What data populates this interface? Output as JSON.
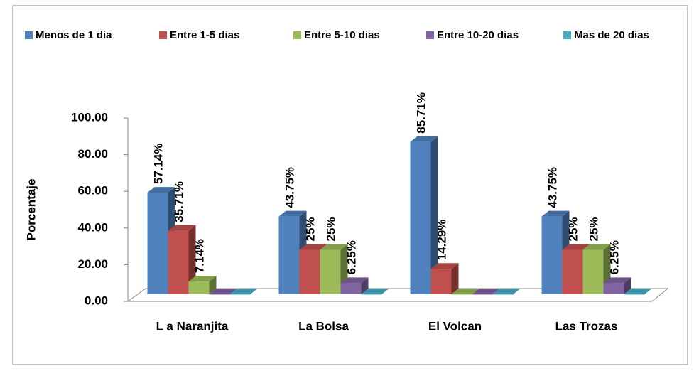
{
  "chart_data": {
    "type": "bar3d",
    "y_label": "Porcentaje",
    "categories": [
      "L a Naranjita",
      "La Bolsa",
      "El Volcan",
      "Las Trozas"
    ],
    "series": [
      {
        "name": "Menos de 1 dia",
        "color": "#4f81bd",
        "values": [
          57.14,
          43.75,
          85.71,
          43.75
        ],
        "value_labels": [
          "57.14%",
          "43.75%",
          "85.71%",
          "43.75%"
        ]
      },
      {
        "name": "Entre 1-5 dias",
        "color": "#c0504d",
        "values": [
          35.71,
          25,
          14.29,
          25
        ],
        "value_labels": [
          "35.71%",
          "25%",
          "14.29%",
          "25%"
        ]
      },
      {
        "name": "Entre 5-10 dias",
        "color": "#9bbb59",
        "values": [
          7.14,
          25,
          0,
          25
        ],
        "value_labels": [
          "7.14%",
          "25%",
          null,
          "25%"
        ]
      },
      {
        "name": "Entre 10-20 dias",
        "color": "#8064a2",
        "values": [
          0,
          6.25,
          0,
          6.25
        ],
        "value_labels": [
          null,
          "6.25%",
          null,
          "6.25%"
        ]
      },
      {
        "name": "Mas de 20 dias",
        "color": "#4bacc6",
        "values": [
          0,
          0,
          0,
          0
        ],
        "value_labels": [
          null,
          null,
          null,
          null
        ]
      }
    ],
    "ylim": [
      0,
      100
    ],
    "yticks": [
      {
        "value": 0,
        "label": "0.00"
      },
      {
        "value": 20,
        "label": "20.00"
      },
      {
        "value": 40,
        "label": "40.00"
      },
      {
        "value": 60,
        "label": "60.00"
      },
      {
        "value": 80,
        "label": "80.00"
      },
      {
        "value": 100,
        "label": "100.00"
      }
    ],
    "legend": "top"
  }
}
